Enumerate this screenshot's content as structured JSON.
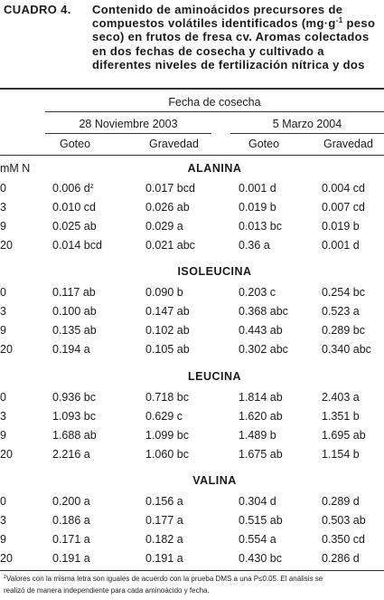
{
  "caption": {
    "label": "CUADRO 4.",
    "lines": [
      "Contenido de aminoácidos precursores de",
      "compuestos volátiles identificados (mg·g",
      "seco) en frutos de fresa cv. Aromas colectados",
      "en dos fechas de cosecha y cultivado a",
      "diferentes niveles de fertilización nítrica y dos"
    ],
    "unit_sup": "-1",
    "unit_tail": " peso"
  },
  "header": {
    "group_title": "Fecha de cosecha",
    "date1": "28 Noviembre 2003",
    "date2": "5 Marzo 2004",
    "col_goteo1": "Goteo",
    "col_gravedad1": "Gravedad",
    "col_goteo2": "Goteo",
    "col_gravedad2": "Gravedad",
    "row_unit": "mM N"
  },
  "sections": [
    {
      "name": "ALANINA",
      "rows": [
        {
          "n": "0",
          "c1": "0.006 d",
          "c1_sup": "z",
          "c2": "0.017 bcd",
          "c3": "0.001 d",
          "c4": "0.004 cd"
        },
        {
          "n": "3",
          "c1": "0.010 cd",
          "c2": "0.026 ab",
          "c3": "0.019 b",
          "c4": "0.007 cd"
        },
        {
          "n": "9",
          "c1": "0.025 ab",
          "c2": "0.029 a",
          "c3": "0.013 bc",
          "c4": "0.019 b"
        },
        {
          "n": "20",
          "c1": "0.014 bcd",
          "c2": "0.021 abc",
          "c3": "0.36 a",
          "c4": "0.001 d"
        }
      ]
    },
    {
      "name": "ISOLEUCINA",
      "rows": [
        {
          "n": "0",
          "c1": "0.117 ab",
          "c2": "0.090 b",
          "c3": "0.203 c",
          "c4": "0.254 bc"
        },
        {
          "n": "3",
          "c1": "0.100 ab",
          "c2": "0.147 ab",
          "c3": "0.368 abc",
          "c4": "0.523 a"
        },
        {
          "n": "9",
          "c1": "0.135 ab",
          "c2": "0.102 ab",
          "c3": "0.443 ab",
          "c4": "0.289 bc"
        },
        {
          "n": "20",
          "c1": "0.194 a",
          "c2": "0.105 ab",
          "c3": "0.302 abc",
          "c4": "0.340 abc"
        }
      ]
    },
    {
      "name": "LEUCINA",
      "rows": [
        {
          "n": "0",
          "c1": "0.936 bc",
          "c2": "0.718 bc",
          "c3": "1.814 ab",
          "c4": "2.403 a"
        },
        {
          "n": "3",
          "c1": "1.093 bc",
          "c2": "0.629 c",
          "c3": "1.620 ab",
          "c4": "1.351 b"
        },
        {
          "n": "9",
          "c1": "1.688 ab",
          "c2": "1.099 bc",
          "c3": "1.489 b",
          "c4": "1.695 ab"
        },
        {
          "n": "20",
          "c1": "2.216 a",
          "c2": "1.060 bc",
          "c3": "1.675 ab",
          "c4": "1.154 b"
        }
      ]
    },
    {
      "name": "VALINA",
      "rows": [
        {
          "n": "0",
          "c1": "0.200 a",
          "c2": "0.156 a",
          "c3": "0.304 d",
          "c4": "0.289 d"
        },
        {
          "n": "3",
          "c1": "0.186 a",
          "c2": "0.177 a",
          "c3": "0.515 ab",
          "c4": "0.503 ab"
        },
        {
          "n": "9",
          "c1": "0.171 a",
          "c2": "0.182 a",
          "c3": "0.554 a",
          "c4": "0.350 cd"
        },
        {
          "n": "20",
          "c1": "0.191 a",
          "c2": "0.191 a",
          "c3": "0.430 bc",
          "c4": "0.286 d"
        }
      ]
    }
  ],
  "footnote": {
    "marker": "z",
    "line1": "Valores con la misma letra son iguales de acuerdo con la prueba DMS a una P≤0.05. El análisis se",
    "line2": "realizó de manera independiente para cada aminoácido y fecha."
  }
}
